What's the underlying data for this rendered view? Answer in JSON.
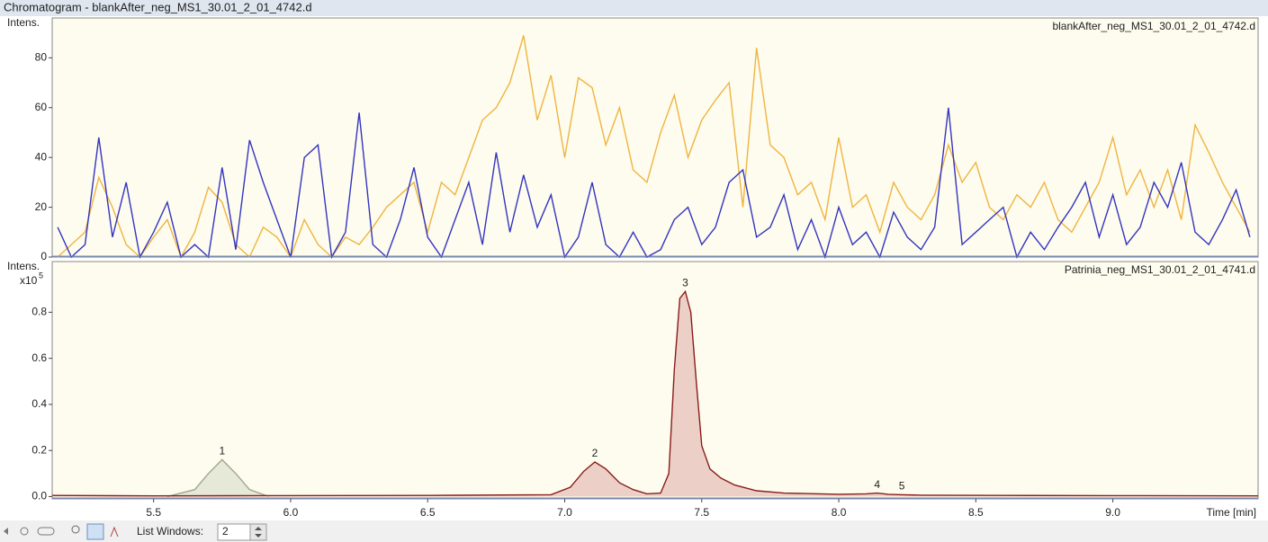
{
  "window": {
    "title": "Chromatogram - blankAfter_neg_MS1_30.01_2_01_4742.d"
  },
  "chart_data": [
    {
      "type": "line",
      "ylabel": "Intens.",
      "dataset_label": "blankAfter_neg_MS1_30.01_2_01_4742.d",
      "xlim": [
        5.13,
        9.53
      ],
      "ylim": [
        0,
        96
      ],
      "yticks": [
        0,
        20,
        40,
        60,
        80
      ],
      "x": [
        5.15,
        5.2,
        5.25,
        5.3,
        5.35,
        5.4,
        5.45,
        5.5,
        5.55,
        5.6,
        5.65,
        5.7,
        5.75,
        5.8,
        5.85,
        5.9,
        5.95,
        6.0,
        6.05,
        6.1,
        6.15,
        6.2,
        6.25,
        6.3,
        6.35,
        6.4,
        6.45,
        6.5,
        6.55,
        6.6,
        6.65,
        6.7,
        6.75,
        6.8,
        6.85,
        6.9,
        6.95,
        7.0,
        7.05,
        7.1,
        7.15,
        7.2,
        7.25,
        7.3,
        7.35,
        7.4,
        7.45,
        7.5,
        7.55,
        7.6,
        7.65,
        7.7,
        7.75,
        7.8,
        7.85,
        7.9,
        7.95,
        8.0,
        8.05,
        8.1,
        8.15,
        8.2,
        8.25,
        8.3,
        8.35,
        8.4,
        8.45,
        8.5,
        8.55,
        8.6,
        8.65,
        8.7,
        8.75,
        8.8,
        8.85,
        8.9,
        8.95,
        9.0,
        9.05,
        9.1,
        9.15,
        9.2,
        9.25,
        9.3,
        9.35,
        9.4,
        9.45,
        9.5
      ],
      "series": [
        {
          "color": "#f0b440",
          "values": [
            0,
            5,
            10,
            32,
            20,
            5,
            0,
            8,
            15,
            0,
            10,
            28,
            22,
            5,
            0,
            12,
            8,
            0,
            15,
            5,
            0,
            8,
            5,
            12,
            20,
            25,
            30,
            10,
            30,
            25,
            40,
            55,
            60,
            70,
            89,
            55,
            73,
            40,
            72,
            68,
            45,
            60,
            35,
            30,
            50,
            65,
            40,
            55,
            63,
            70,
            20,
            84,
            45,
            40,
            25,
            30,
            15,
            48,
            20,
            25,
            10,
            30,
            20,
            15,
            25,
            45,
            30,
            38,
            20,
            15,
            25,
            20,
            30,
            15,
            10,
            20,
            30,
            48,
            25,
            35,
            20,
            35,
            15,
            53,
            42,
            30,
            20,
            10
          ]
        },
        {
          "color": "#3434c0",
          "values": [
            12,
            0,
            5,
            48,
            8,
            30,
            0,
            10,
            22,
            0,
            5,
            0,
            36,
            3,
            47,
            30,
            15,
            0,
            40,
            45,
            0,
            10,
            58,
            5,
            0,
            15,
            36,
            8,
            0,
            15,
            30,
            5,
            42,
            10,
            33,
            12,
            25,
            0,
            8,
            30,
            5,
            0,
            10,
            0,
            3,
            15,
            20,
            5,
            12,
            30,
            35,
            8,
            12,
            25,
            3,
            15,
            0,
            20,
            5,
            10,
            0,
            18,
            8,
            3,
            12,
            60,
            5,
            10,
            15,
            20,
            0,
            10,
            3,
            12,
            20,
            30,
            8,
            25,
            5,
            12,
            30,
            20,
            38,
            10,
            5,
            15,
            27,
            8
          ]
        }
      ]
    },
    {
      "type": "line",
      "ylabel": "Intens.",
      "y_scale_label": "x10",
      "y_scale_exponent": "5",
      "dataset_label": "Patrinia_neg_MS1_30.01_2_01_4741.d",
      "xlabel": "Time [min]",
      "xlim": [
        5.13,
        9.53
      ],
      "xticks": [
        5.5,
        {
          "value": 6,
          "label": "6.0"
        },
        6.5,
        {
          "value": 7,
          "label": "7.0"
        },
        7.5,
        {
          "value": 8,
          "label": "8.0"
        },
        8.5,
        {
          "value": 9,
          "label": "9.0"
        }
      ],
      "ylim": [
        -0.01,
        1.02
      ],
      "yticks": [
        {
          "value": 0,
          "label": "0.0"
        },
        0.2,
        0.4,
        0.6,
        0.8
      ],
      "series": [
        {
          "color": "#a0a690",
          "fill": "#e6e8d8",
          "x": [
            5.55,
            5.65,
            5.7,
            5.75,
            5.8,
            5.85,
            5.92
          ],
          "values": [
            0,
            0.03,
            0.1,
            0.16,
            0.1,
            0.03,
            0
          ]
        },
        {
          "color": "#8a1c1c",
          "fill": "#ecd0c8",
          "x": [
            5.13,
            5.5,
            5.9,
            6.5,
            6.95,
            7.02,
            7.07,
            7.11,
            7.15,
            7.2,
            7.25,
            7.3,
            7.35,
            7.38,
            7.4,
            7.42,
            7.44,
            7.46,
            7.48,
            7.5,
            7.53,
            7.57,
            7.62,
            7.7,
            7.8,
            8.0,
            8.1,
            8.14,
            8.18,
            8.23,
            8.3,
            8.6,
            9.0,
            9.53
          ],
          "values": [
            0.005,
            0.003,
            0.004,
            0.005,
            0.008,
            0.04,
            0.11,
            0.15,
            0.12,
            0.06,
            0.03,
            0.012,
            0.015,
            0.1,
            0.55,
            0.86,
            0.89,
            0.8,
            0.5,
            0.22,
            0.12,
            0.08,
            0.05,
            0.025,
            0.015,
            0.01,
            0.012,
            0.015,
            0.01,
            0.008,
            0.006,
            0.005,
            0.004,
            0.003
          ]
        }
      ],
      "annotations": [
        {
          "text": "1",
          "x": 5.75,
          "y": 0.16
        },
        {
          "text": "2",
          "x": 7.11,
          "y": 0.15
        },
        {
          "text": "3",
          "x": 7.44,
          "y": 0.89
        },
        {
          "text": "4",
          "x": 8.14,
          "y": 0.015
        },
        {
          "text": "5",
          "x": 8.23,
          "y": 0.008
        }
      ]
    }
  ],
  "toolbar": {
    "list_windows_label": "List Windows:",
    "list_windows_value": "2"
  }
}
